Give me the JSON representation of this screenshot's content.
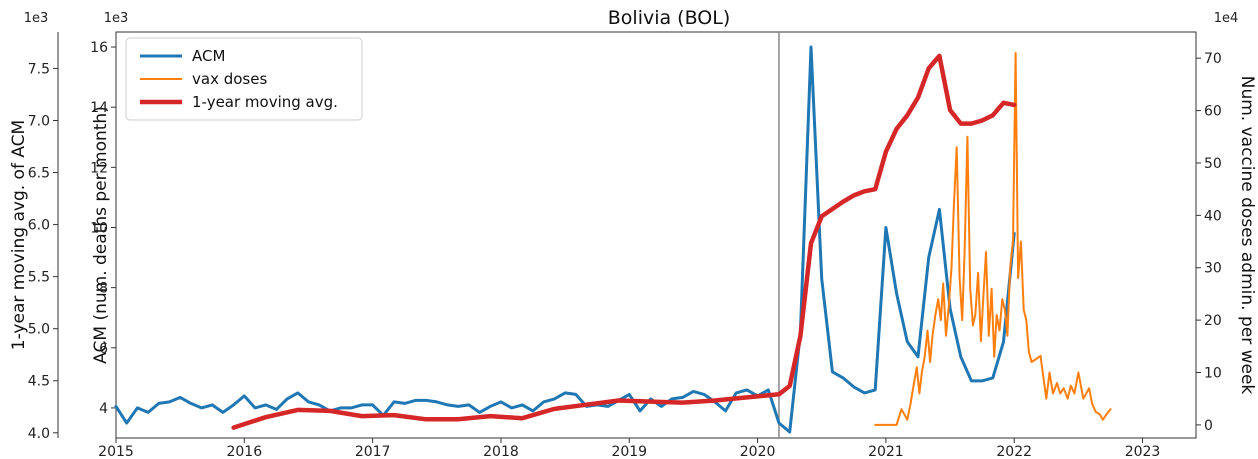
{
  "chart_data": {
    "type": "line",
    "title": "Bolivia (BOL)",
    "x_axis": {
      "ticks": [
        "2015",
        "2016",
        "2017",
        "2018",
        "2019",
        "2020",
        "2021",
        "2022",
        "2023"
      ],
      "range": [
        "2015-01",
        "2023-06"
      ]
    },
    "y_axis_left_outer": {
      "label": "1-year moving avg. of ACM",
      "exponent": "1e3",
      "range": [
        3.95,
        7.85
      ],
      "ticks": [
        "4.0",
        "4.5",
        "5.0",
        "5.5",
        "6.0",
        "6.5",
        "7.0",
        "7.5"
      ]
    },
    "y_axis_left_inner": {
      "label": "ACM (num. deaths per month)",
      "exponent": "1e3",
      "range": [
        3.0,
        16.5
      ],
      "ticks": [
        "4",
        "6",
        "8",
        "10",
        "12",
        "14",
        "16"
      ]
    },
    "y_axis_right": {
      "label": "Num. vaccine doses admin. per week",
      "exponent": "1e4",
      "range": [
        -2.5,
        75
      ],
      "ticks": [
        "0",
        "10",
        "20",
        "30",
        "40",
        "50",
        "60",
        "70"
      ]
    },
    "vline": "2020-03",
    "legend": {
      "placement": "top-left",
      "entries": [
        "ACM",
        "vax doses",
        "1-year moving avg."
      ]
    },
    "series": [
      {
        "name": "ACM",
        "axis": "left_inner",
        "color": "#1f77b4",
        "x": [
          "2015-01",
          "2015-02",
          "2015-03",
          "2015-04",
          "2015-05",
          "2015-06",
          "2015-07",
          "2015-08",
          "2015-09",
          "2015-10",
          "2015-11",
          "2015-12",
          "2016-01",
          "2016-02",
          "2016-03",
          "2016-04",
          "2016-05",
          "2016-06",
          "2016-07",
          "2016-08",
          "2016-09",
          "2016-10",
          "2016-11",
          "2016-12",
          "2017-01",
          "2017-02",
          "2017-03",
          "2017-04",
          "2017-05",
          "2017-06",
          "2017-07",
          "2017-08",
          "2017-09",
          "2017-10",
          "2017-11",
          "2017-12",
          "2018-01",
          "2018-02",
          "2018-03",
          "2018-04",
          "2018-05",
          "2018-06",
          "2018-07",
          "2018-08",
          "2018-09",
          "2018-10",
          "2018-11",
          "2018-12",
          "2019-01",
          "2019-02",
          "2019-03",
          "2019-04",
          "2019-05",
          "2019-06",
          "2019-07",
          "2019-08",
          "2019-09",
          "2019-10",
          "2019-11",
          "2019-12",
          "2020-01",
          "2020-02",
          "2020-03",
          "2020-04",
          "2020-05",
          "2020-06",
          "2020-07",
          "2020-08",
          "2020-09",
          "2020-10",
          "2020-11",
          "2020-12",
          "2021-01",
          "2021-02",
          "2021-03",
          "2021-04",
          "2021-05",
          "2021-06",
          "2021-07",
          "2021-08",
          "2021-09",
          "2021-10",
          "2021-11",
          "2021-12",
          "2022-01"
        ],
        "values": [
          4.05,
          3.5,
          4.0,
          3.85,
          4.15,
          4.2,
          4.35,
          4.15,
          4.0,
          4.1,
          3.85,
          4.1,
          4.4,
          4.0,
          4.1,
          3.95,
          4.3,
          4.5,
          4.2,
          4.1,
          3.9,
          4.0,
          4.0,
          4.1,
          4.1,
          3.75,
          4.2,
          4.15,
          4.25,
          4.25,
          4.2,
          4.1,
          4.05,
          4.1,
          3.85,
          4.05,
          4.2,
          4.0,
          4.1,
          3.9,
          4.2,
          4.3,
          4.5,
          4.45,
          4.05,
          4.1,
          4.05,
          4.25,
          4.45,
          3.9,
          4.3,
          4.05,
          4.3,
          4.35,
          4.55,
          4.45,
          4.2,
          3.9,
          4.5,
          4.6,
          4.4,
          4.6,
          3.5,
          3.2,
          6.5,
          16.0,
          8.3,
          5.2,
          5.0,
          4.7,
          4.5,
          4.6,
          10.0,
          7.8,
          6.2,
          5.7,
          9.0,
          10.6,
          7.3,
          5.7,
          4.9,
          4.9,
          5.0,
          6.2,
          9.8
        ]
      },
      {
        "name": "vax doses",
        "axis": "right",
        "color": "#ff7f0e",
        "x": [
          "2020-12-01",
          "2021-01-05",
          "2021-02-01",
          "2021-02-15",
          "2021-03-01",
          "2021-03-10",
          "2021-03-20",
          "2021-03-28",
          "2021-04-05",
          "2021-04-12",
          "2021-04-20",
          "2021-04-28",
          "2021-05-05",
          "2021-05-12",
          "2021-05-20",
          "2021-05-28",
          "2021-06-05",
          "2021-06-12",
          "2021-06-20",
          "2021-06-28",
          "2021-07-05",
          "2021-07-12",
          "2021-07-20",
          "2021-07-28",
          "2021-08-05",
          "2021-08-12",
          "2021-08-20",
          "2021-08-28",
          "2021-09-05",
          "2021-09-12",
          "2021-09-20",
          "2021-09-28",
          "2021-10-05",
          "2021-10-12",
          "2021-10-20",
          "2021-10-28",
          "2021-11-05",
          "2021-11-12",
          "2021-11-20",
          "2021-11-28",
          "2021-12-05",
          "2021-12-12",
          "2021-12-20",
          "2021-12-28",
          "2022-01-05",
          "2022-01-12",
          "2022-01-20",
          "2022-01-28",
          "2022-02-05",
          "2022-02-12",
          "2022-02-20",
          "2022-03-01",
          "2022-03-15",
          "2022-04-01",
          "2022-04-10",
          "2022-04-20",
          "2022-05-01",
          "2022-05-10",
          "2022-05-20",
          "2022-06-01",
          "2022-06-10",
          "2022-06-20",
          "2022-07-01",
          "2022-07-15",
          "2022-08-01",
          "2022-08-10",
          "2022-08-20",
          "2022-09-01",
          "2022-09-10",
          "2022-09-20",
          "2022-10-01"
        ],
        "values": [
          0,
          0,
          0,
          3,
          1,
          4,
          8,
          11,
          6,
          10,
          13,
          18,
          12,
          17,
          21,
          24,
          20,
          27,
          17,
          23,
          30,
          42,
          53,
          28,
          20,
          33,
          55,
          26,
          19,
          21,
          29,
          16,
          25,
          33,
          17,
          26,
          13,
          21,
          18,
          24,
          22,
          17,
          30,
          35,
          71,
          28,
          35,
          22,
          20,
          14,
          12,
          12.5,
          13.2,
          5,
          10,
          6,
          8,
          6,
          7,
          5,
          7.5,
          6,
          10,
          5,
          7,
          4,
          2.5,
          2,
          1,
          2,
          3
        ]
      },
      {
        "name": "1-year moving avg.",
        "axis": "left_outer",
        "color": "#d62728",
        "x": [
          "2015-12",
          "2016-03",
          "2016-06",
          "2016-09",
          "2016-12",
          "2017-03",
          "2017-06",
          "2017-09",
          "2017-12",
          "2018-03",
          "2018-06",
          "2018-09",
          "2018-12",
          "2019-03",
          "2019-06",
          "2019-09",
          "2019-12",
          "2020-03",
          "2020-04",
          "2020-05",
          "2020-06",
          "2020-07",
          "2020-08",
          "2020-09",
          "2020-10",
          "2020-11",
          "2020-12",
          "2021-01",
          "2021-02",
          "2021-03",
          "2021-04",
          "2021-05",
          "2021-06",
          "2021-07",
          "2021-08",
          "2021-09",
          "2021-10",
          "2021-11",
          "2021-12",
          "2022-01"
        ],
        "values": [
          4.05,
          4.15,
          4.22,
          4.21,
          4.16,
          4.17,
          4.13,
          4.13,
          4.16,
          4.14,
          4.23,
          4.27,
          4.31,
          4.3,
          4.29,
          4.31,
          4.34,
          4.37,
          4.45,
          4.93,
          5.82,
          6.08,
          6.15,
          6.22,
          6.28,
          6.32,
          6.34,
          6.7,
          6.92,
          7.05,
          7.22,
          7.5,
          7.62,
          7.1,
          6.97,
          6.97,
          7.0,
          7.05,
          7.17,
          7.15
        ]
      }
    ]
  }
}
